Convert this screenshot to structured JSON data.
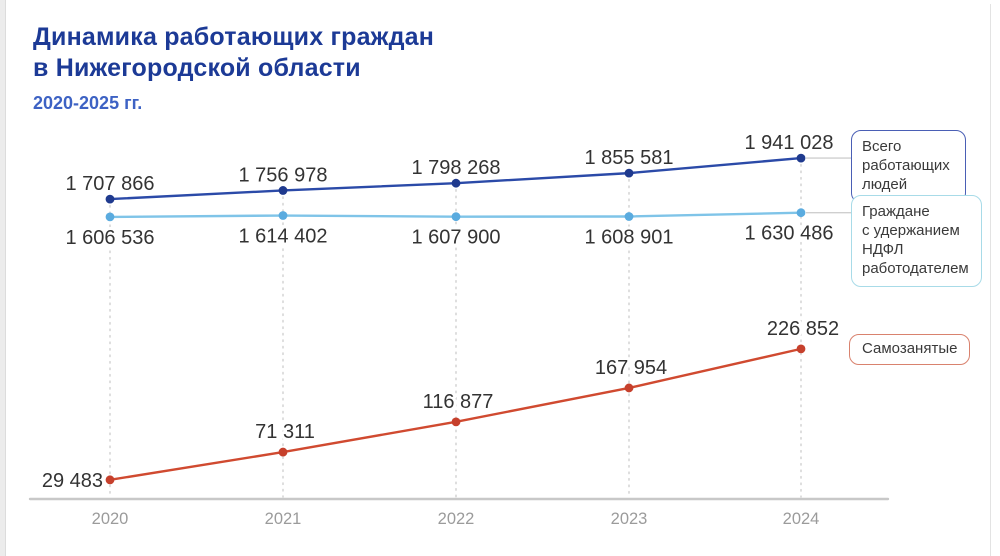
{
  "header": {
    "title_line1": "Динамика работающих граждан",
    "title_line2": "в Нижегородской области",
    "subtitle": "2020-2025 гг."
  },
  "chart_data": {
    "type": "line",
    "title": "Динамика работающих граждан в Нижегородской области",
    "categories": [
      "2020",
      "2021",
      "2022",
      "2023",
      "2024"
    ],
    "series": [
      {
        "name": "Всего работающих людей",
        "values": [
          1707866,
          1756978,
          1798268,
          1855581,
          1941028
        ],
        "color": "#2b4aa8",
        "point_color": "#1f3a8e",
        "axis": "top"
      },
      {
        "name": "Граждане с удержанием НДФЛ работодателем",
        "values": [
          1606536,
          1614402,
          1607900,
          1608901,
          1630486
        ],
        "color": "#7fc4e8",
        "point_color": "#5aabdf",
        "axis": "top"
      },
      {
        "name": "Самозанятые",
        "values": [
          29483,
          71311,
          116877,
          167954,
          226852
        ],
        "color": "#d04a30",
        "point_color": "#c6402c",
        "axis": "bottom"
      }
    ],
    "grid": "vertical-dotted",
    "legend_position": "right",
    "xlabel": "",
    "ylabel": ""
  },
  "legend": {
    "total": {
      "label": "Всего\nработающих\nлюдей",
      "border": "#4a5fb5"
    },
    "ndfl": {
      "label": "Граждане\nс удержанием\nНДФЛ\nработодателем",
      "border": "#a8dbe8"
    },
    "self": {
      "label": "Самозанятые",
      "border": "#d9826e"
    }
  },
  "style_colors": {
    "title": "#1c3a96",
    "subtitle": "#3d62c4",
    "data_label": "#333333",
    "year_label": "#9b9b9b",
    "axis_line": "#c8c8c8",
    "grid_line": "#d0d0d0",
    "connector": "#cfcfcf"
  }
}
